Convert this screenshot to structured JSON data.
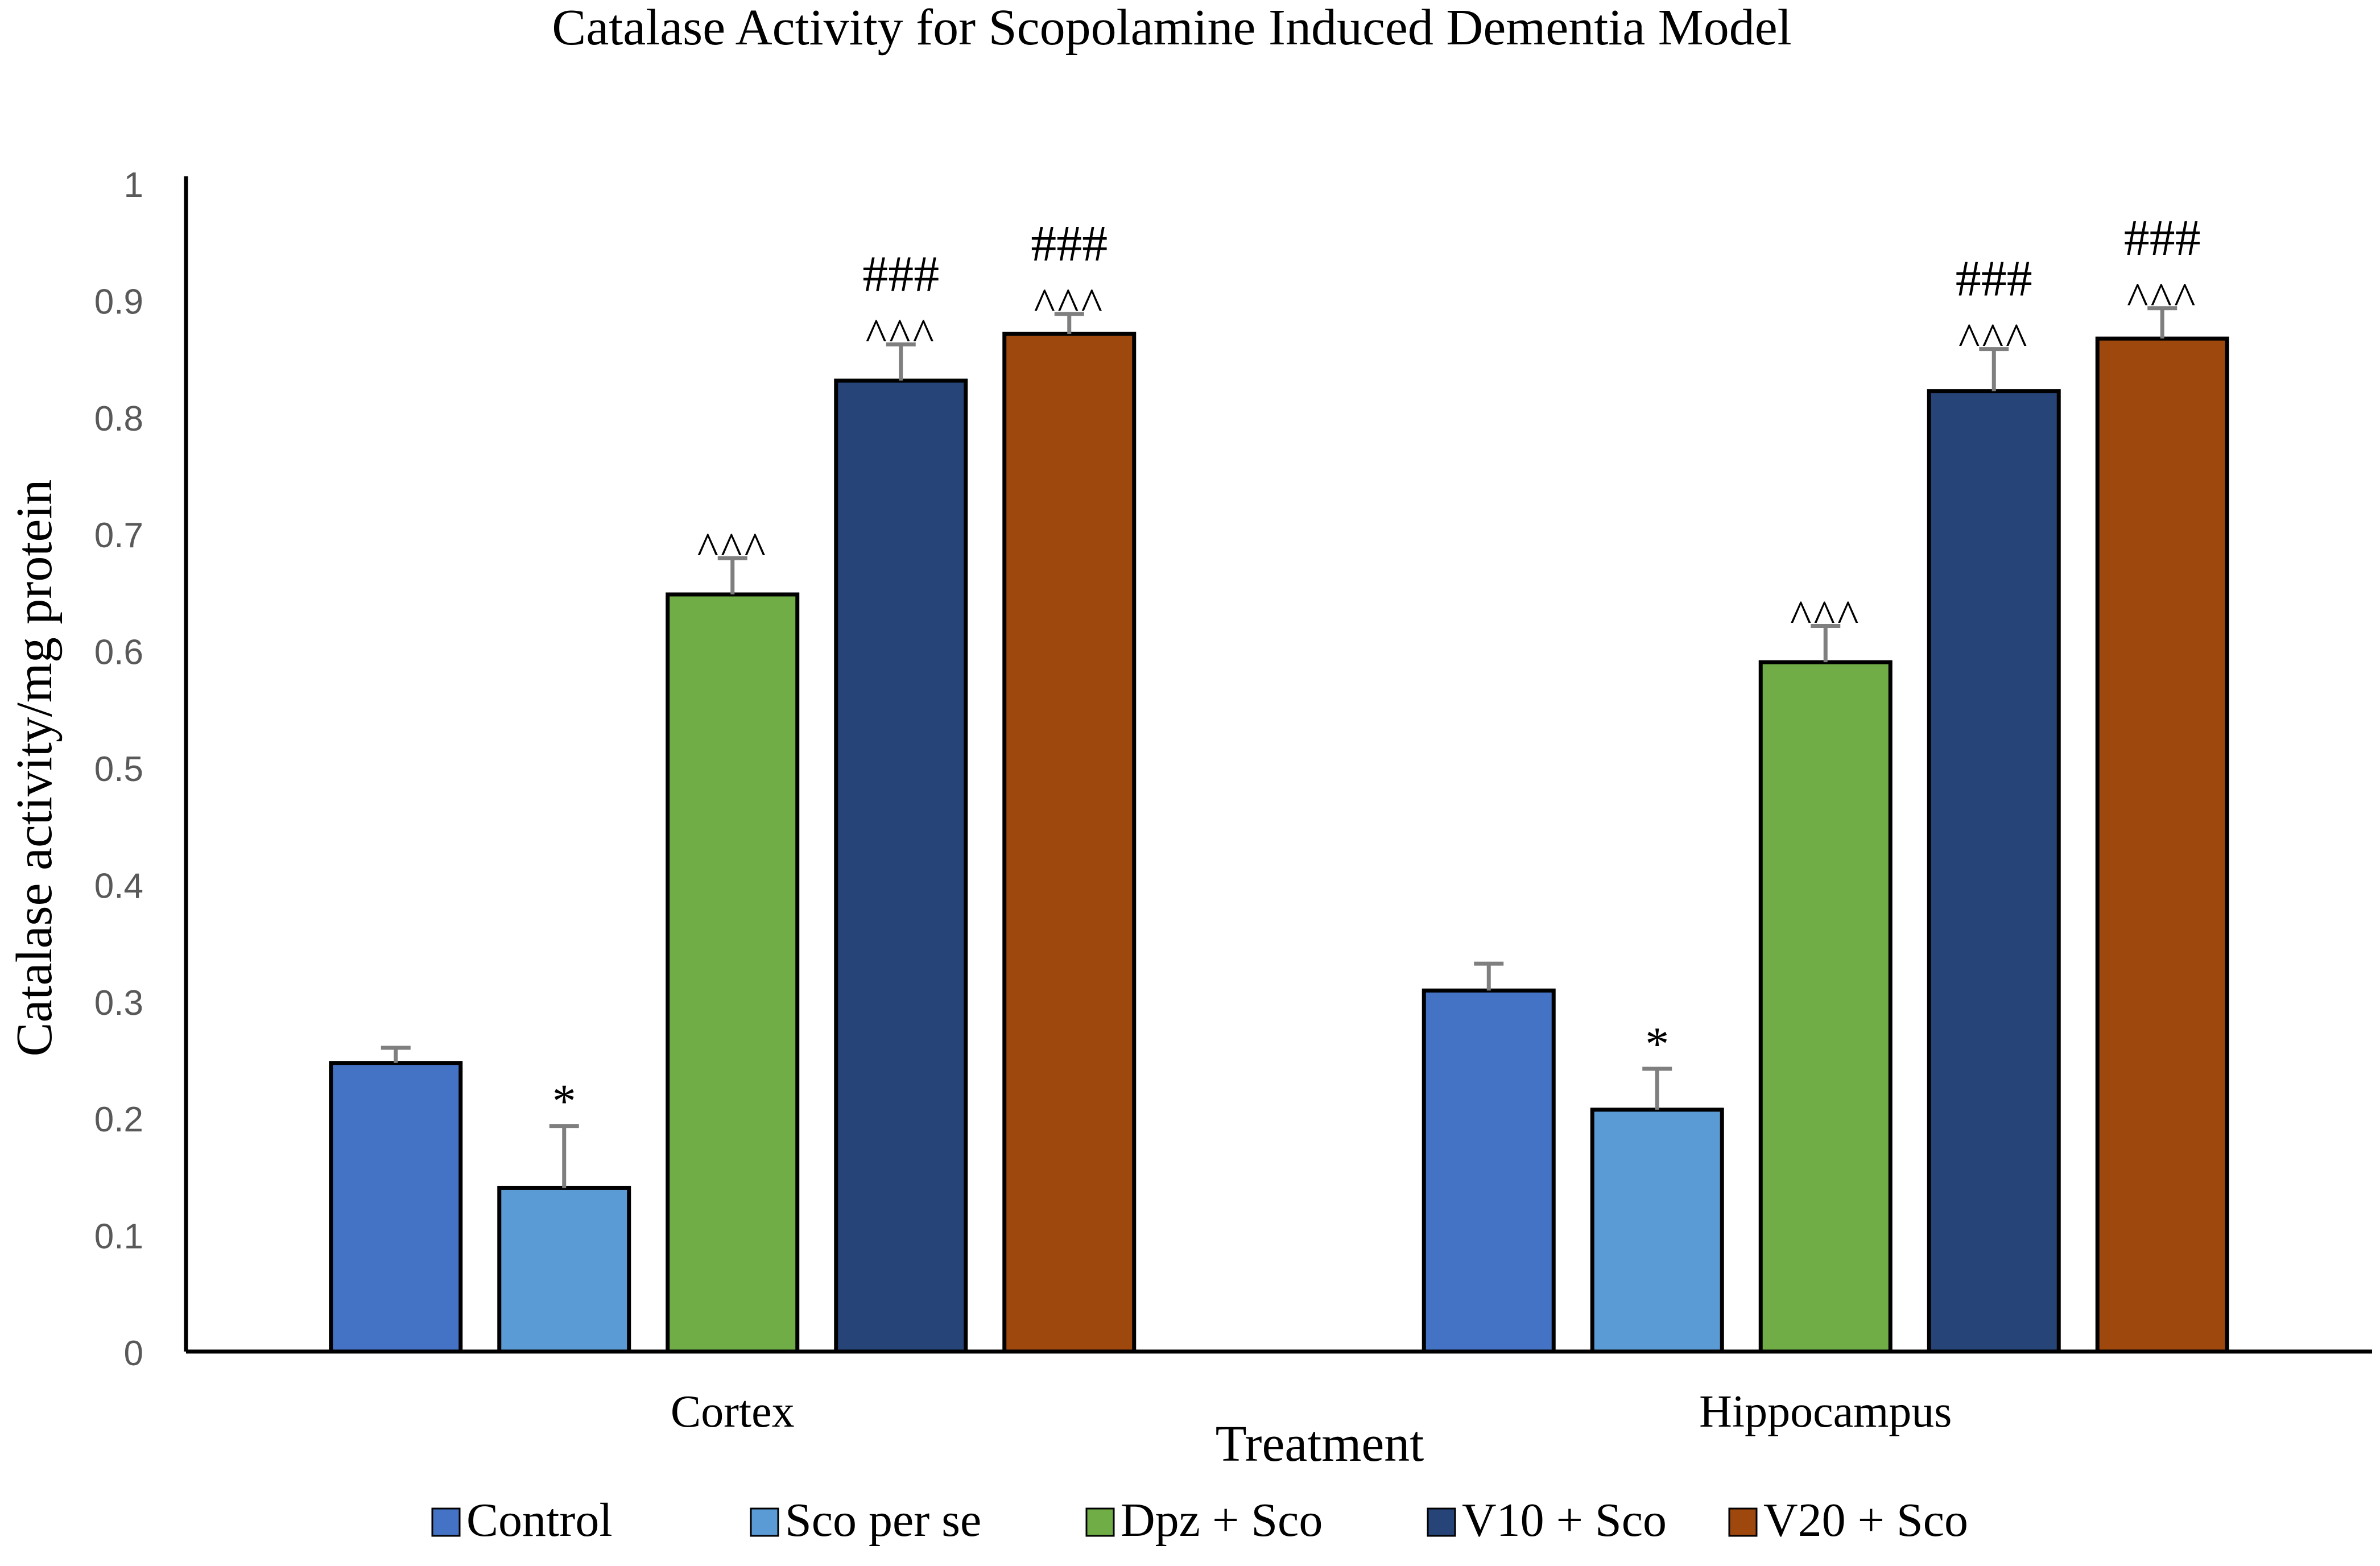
{
  "chart_data": {
    "type": "bar",
    "title": "Catalase Activity for Scopolamine Induced Dementia Model",
    "xlabel": "Treatment",
    "ylabel": "Catalase activity/mg protein",
    "ylim": [
      0,
      1
    ],
    "yticks": [
      "0",
      "0.1",
      "0.2",
      "0.3",
      "0.4",
      "0.5",
      "0.6",
      "0.7",
      "0.8",
      "0.9",
      "1"
    ],
    "grid": false,
    "legend_position": "bottom",
    "categories": [
      "Cortex",
      "Hippocampus"
    ],
    "series": [
      {
        "name": "Control",
        "color": "#4472C4",
        "values": [
          0.247,
          0.309
        ],
        "errors": [
          0.013,
          0.023
        ],
        "annotations": [
          [],
          []
        ]
      },
      {
        "name": "Sco per se",
        "color": "#5B9BD5",
        "values": [
          0.14,
          0.207
        ],
        "errors": [
          0.053,
          0.035
        ],
        "annotations": [
          [
            "*"
          ],
          [
            "*"
          ]
        ]
      },
      {
        "name": "Dpz + Sco",
        "color": "#70AD47",
        "values": [
          0.648,
          0.59
        ],
        "errors": [
          0.031,
          0.031
        ],
        "annotations": [
          [
            "^^^"
          ],
          [
            "^^^"
          ]
        ]
      },
      {
        "name": "V10 + Sco",
        "color": "#264478",
        "values": [
          0.831,
          0.822
        ],
        "errors": [
          0.031,
          0.036
        ],
        "annotations": [
          [
            "^^^",
            "###"
          ],
          [
            "^^^",
            "###"
          ]
        ]
      },
      {
        "name": "V20 + Sco",
        "color": "#9E480E",
        "values": [
          0.871,
          0.867
        ],
        "errors": [
          0.017,
          0.026
        ],
        "annotations": [
          [
            "^^^",
            "###"
          ],
          [
            "^^^",
            "###"
          ]
        ]
      }
    ]
  }
}
